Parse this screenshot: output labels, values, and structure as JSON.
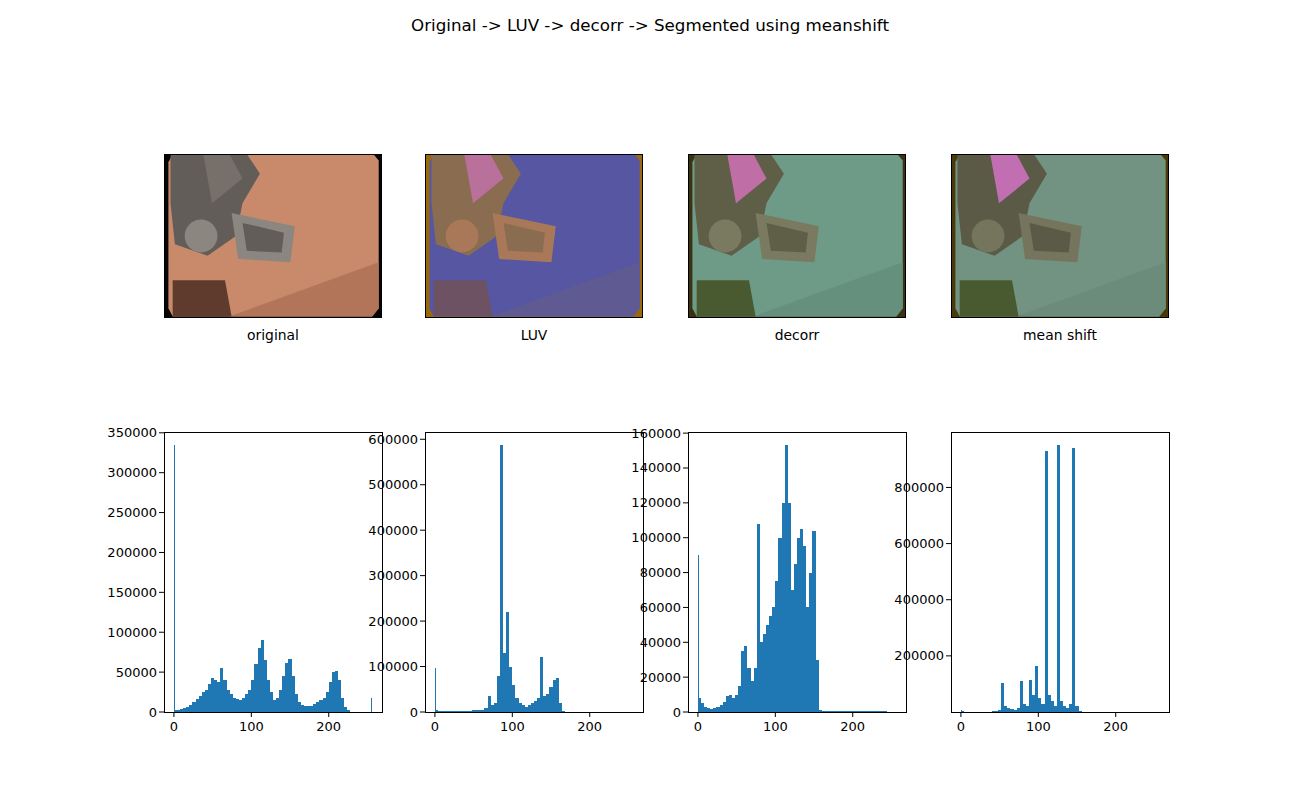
{
  "figure": {
    "title": "Original -> LUV -> decorr -> Segmented using meanshift",
    "images": [
      "original",
      "LUV",
      "decorr",
      "mean shift"
    ]
  },
  "chart_data": [
    {
      "type": "histogram",
      "color": "#1f77b4",
      "bins": [
        0,
        1,
        4,
        8,
        12,
        16,
        20,
        24,
        28,
        32,
        36,
        40,
        44,
        48,
        52,
        56,
        60,
        64,
        68,
        72,
        76,
        80,
        84,
        88,
        92,
        96,
        100,
        104,
        108,
        112,
        116,
        120,
        124,
        128,
        132,
        136,
        140,
        144,
        148,
        152,
        156,
        160,
        164,
        168,
        172,
        176,
        180,
        184,
        188,
        192,
        196,
        200,
        204,
        208,
        212,
        216,
        220,
        224,
        228,
        232,
        236,
        240,
        244,
        248,
        252,
        255,
        256
      ],
      "values": [
        335000,
        3000,
        3000,
        4000,
        5000,
        6000,
        9000,
        12000,
        16000,
        20000,
        25000,
        28000,
        35000,
        42000,
        40000,
        38000,
        55000,
        40000,
        28000,
        22000,
        18000,
        16000,
        15000,
        18000,
        22000,
        28000,
        40000,
        60000,
        80000,
        90000,
        65000,
        40000,
        25000,
        15000,
        18000,
        28000,
        45000,
        62000,
        66000,
        45000,
        22000,
        12000,
        9000,
        8000,
        7000,
        8000,
        10000,
        12000,
        15000,
        18000,
        25000,
        38000,
        50000,
        52000,
        40000,
        18000,
        6000,
        2000,
        500,
        200,
        100,
        100,
        0,
        0,
        0,
        17000
      ],
      "xlim": [
        -12.8,
        268.8
      ],
      "ylim": [
        0,
        351000
      ],
      "xticks": [
        0,
        100,
        200
      ],
      "yticks": [
        0,
        50000,
        100000,
        150000,
        200000,
        250000,
        300000,
        350000
      ]
    },
    {
      "type": "histogram",
      "color": "#1f77b4",
      "bins": [
        0,
        1,
        4,
        8,
        12,
        16,
        20,
        24,
        28,
        32,
        36,
        40,
        44,
        48,
        52,
        56,
        60,
        64,
        68,
        72,
        76,
        80,
        84,
        88,
        92,
        96,
        100,
        104,
        108,
        112,
        116,
        120,
        124,
        128,
        132,
        136,
        140,
        144,
        148,
        152,
        156,
        160,
        164,
        168,
        172,
        176,
        180,
        184,
        188,
        192,
        196,
        200,
        204,
        208,
        212,
        216,
        220,
        224,
        228,
        232,
        236,
        240,
        244,
        248,
        252,
        255,
        256
      ],
      "values": [
        97000,
        5000,
        3000,
        2000,
        2000,
        2000,
        2000,
        2000,
        2000,
        2000,
        2000,
        2500,
        3000,
        3500,
        4000,
        4000,
        5000,
        8000,
        35000,
        15000,
        20000,
        80000,
        587000,
        130000,
        220000,
        100000,
        60000,
        30000,
        20000,
        15000,
        12000,
        15000,
        20000,
        25000,
        30000,
        120000,
        35000,
        40000,
        55000,
        70000,
        75000,
        20000,
        2000,
        0,
        0,
        0,
        0,
        0,
        0,
        0,
        0,
        0,
        0,
        0,
        0,
        0,
        0,
        0,
        0,
        0,
        0,
        0,
        0,
        0,
        0,
        0
      ],
      "xlim": [
        -12.8,
        268.8
      ],
      "ylim": [
        0,
        616000
      ],
      "xticks": [
        0,
        100,
        200
      ],
      "yticks": [
        0,
        100000,
        200000,
        300000,
        400000,
        500000,
        600000
      ]
    },
    {
      "type": "histogram",
      "color": "#1f77b4",
      "bins": [
        0,
        1,
        4,
        8,
        12,
        16,
        20,
        24,
        28,
        32,
        36,
        40,
        44,
        48,
        52,
        56,
        60,
        64,
        68,
        72,
        76,
        80,
        84,
        88,
        92,
        96,
        100,
        104,
        108,
        112,
        116,
        120,
        124,
        128,
        132,
        136,
        140,
        144,
        148,
        152,
        156,
        160,
        164,
        168,
        172,
        176,
        180,
        184,
        188,
        192,
        196,
        200,
        204,
        208,
        212,
        216,
        220,
        224,
        228,
        232,
        236,
        240,
        244,
        248,
        252,
        255,
        256
      ],
      "values": [
        90000,
        8000,
        5000,
        3000,
        2500,
        2000,
        2500,
        3000,
        4000,
        6000,
        9000,
        10000,
        8000,
        10000,
        15000,
        35000,
        38000,
        25000,
        18000,
        25000,
        108000,
        40000,
        45000,
        50000,
        55000,
        60000,
        75000,
        100000,
        120000,
        153000,
        120000,
        70000,
        85000,
        100000,
        105000,
        95000,
        60000,
        80000,
        104000,
        30000,
        1000,
        500,
        300,
        300,
        300,
        300,
        300,
        300,
        300,
        300,
        300,
        300,
        300,
        300,
        300,
        300,
        300,
        300,
        300,
        300,
        300,
        300,
        0,
        0,
        0,
        0
      ],
      "xlim": [
        -12.8,
        268.8
      ],
      "ylim": [
        0,
        160650
      ],
      "xticks": [
        0,
        100,
        200
      ],
      "yticks": [
        0,
        20000,
        40000,
        60000,
        80000,
        100000,
        120000,
        140000,
        160000
      ]
    },
    {
      "type": "histogram",
      "color": "#1f77b4",
      "bins": [
        0,
        1,
        4,
        8,
        12,
        16,
        20,
        24,
        28,
        32,
        36,
        40,
        44,
        48,
        52,
        56,
        60,
        64,
        68,
        72,
        76,
        80,
        84,
        88,
        92,
        96,
        100,
        104,
        108,
        112,
        116,
        120,
        124,
        128,
        132,
        136,
        140,
        144,
        148,
        152,
        156,
        160,
        164,
        168,
        172,
        176,
        180,
        184,
        188,
        192,
        196,
        200,
        204,
        208,
        212,
        216,
        220,
        224,
        228,
        232,
        236,
        240,
        244,
        248,
        252,
        255,
        256
      ],
      "values": [
        8000,
        2000,
        1000,
        1000,
        1000,
        1000,
        1000,
        1000,
        1000,
        1000,
        1000,
        3000,
        5000,
        8000,
        105000,
        20000,
        15000,
        10000,
        8000,
        15000,
        110000,
        30000,
        20000,
        115000,
        60000,
        165000,
        50000,
        30000,
        930000,
        60000,
        40000,
        20000,
        950000,
        40000,
        20000,
        15000,
        30000,
        940000,
        20000,
        3000,
        0,
        0,
        0,
        0,
        0,
        0,
        0,
        0,
        0,
        0,
        0,
        0,
        0,
        0,
        0,
        0,
        0,
        0,
        0,
        0,
        0,
        0,
        0,
        0,
        0,
        0
      ],
      "xlim": [
        -12.8,
        268.8
      ],
      "ylim": [
        0,
        997500
      ],
      "xticks": [
        0,
        100,
        200
      ],
      "yticks": [
        200000,
        400000,
        600000,
        800000
      ]
    }
  ]
}
